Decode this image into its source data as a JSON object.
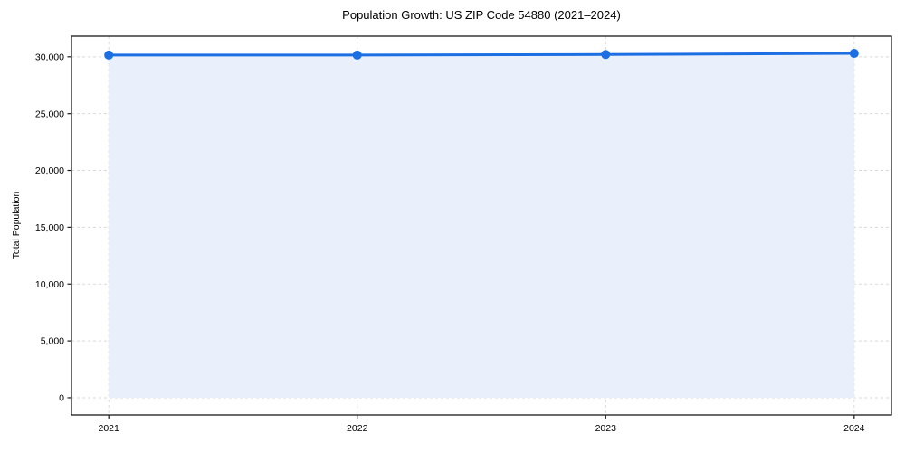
{
  "chart_data": {
    "type": "area",
    "title": "Population Growth: US ZIP Code 54880 (2021–2024)",
    "xlabel": "",
    "ylabel": "Total Population",
    "x": [
      2021,
      2022,
      2023,
      2024
    ],
    "series": [
      {
        "name": "Total Population",
        "values": [
          30150,
          30150,
          30200,
          30300
        ]
      }
    ],
    "xticks": [
      2021,
      2022,
      2023,
      2024
    ],
    "xtick_labels": [
      "2021",
      "2022",
      "2023",
      "2024"
    ],
    "yticks": [
      0,
      5000,
      10000,
      15000,
      20000,
      25000,
      30000
    ],
    "ytick_labels": [
      "0",
      "5,000",
      "10,000",
      "15,000",
      "20,000",
      "25,000",
      "30,000"
    ],
    "xlim": [
      2020.85,
      2024.15
    ],
    "ylim": [
      -1515,
      31815
    ],
    "grid": true,
    "grid_style": "dashed",
    "legend": "none",
    "colors": {
      "line": "#1b6fe3",
      "marker": "#1b6fe3",
      "fill": "#e9f0fc",
      "grid": "#d9d9d9",
      "spine": "#1a1a1a",
      "text": "#000000",
      "background": "#ffffff"
    },
    "marker": "circle",
    "fill_baseline": 0
  }
}
